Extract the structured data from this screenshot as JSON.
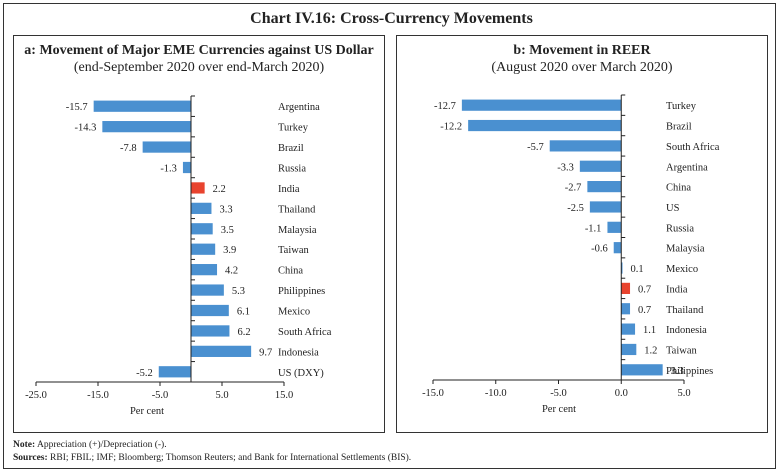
{
  "title": "Chart IV.16: Cross-Currency Movements",
  "colors": {
    "bar": "#4a90d0",
    "highlight": "#e8432e",
    "axis": "#222222"
  },
  "chart_data": [
    {
      "type": "bar",
      "orientation": "horizontal",
      "title": "a: Movement of Major EME Currencies against US Dollar",
      "subtitle": "(end-September 2020 over end-March 2020)",
      "xlabel": "Per cent",
      "ylabel": "",
      "xlim": [
        -25,
        15
      ],
      "xticks": [
        -25,
        -15,
        -5,
        5,
        15
      ],
      "xtick_labels": [
        "-25.0",
        "-15.0",
        "-5.0",
        "5.0",
        "15.0"
      ],
      "categories": [
        "Argentina",
        "Turkey",
        "Brazil",
        "Russia",
        "India",
        "Thailand",
        "Malaysia",
        "Taiwan",
        "China",
        "Philippines",
        "Mexico",
        "South Africa",
        "Indonesia",
        "US (DXY)"
      ],
      "values": [
        -15.7,
        -14.3,
        -7.8,
        -1.3,
        2.2,
        3.3,
        3.5,
        3.9,
        4.2,
        5.3,
        6.1,
        6.2,
        9.7,
        -5.2
      ],
      "highlight": "India",
      "legend": "none",
      "grid": false
    },
    {
      "type": "bar",
      "orientation": "horizontal",
      "title": "b: Movement in REER",
      "subtitle": "(August 2020 over March 2020)",
      "xlabel": "Per cent",
      "ylabel": "",
      "xlim": [
        -15,
        5
      ],
      "xticks": [
        -15,
        -10,
        -5,
        0,
        5
      ],
      "xtick_labels": [
        "-15.0",
        "-10.0",
        "-5.0",
        "0.0",
        "5.0"
      ],
      "categories": [
        "Turkey",
        "Brazil",
        "South Africa",
        "Argentina",
        "China",
        "US",
        "Russia",
        "Malaysia",
        "Mexico",
        "India",
        "Thailand",
        "Indonesia",
        "Taiwan",
        "Philippines"
      ],
      "values": [
        -12.7,
        -12.2,
        -5.7,
        -3.3,
        -2.7,
        -2.5,
        -1.1,
        -0.6,
        0.1,
        0.7,
        0.7,
        1.1,
        1.2,
        3.3
      ],
      "highlight": "India",
      "legend": "none",
      "grid": false
    }
  ],
  "footer": {
    "note_label": "Note:",
    "note_text": " Appreciation (+)/Depreciation (-).",
    "sources_label": "Sources:",
    "sources_text": " RBI; FBIL; IMF; Bloomberg; Thomson Reuters; and Bank for International Settlements (BIS)."
  }
}
